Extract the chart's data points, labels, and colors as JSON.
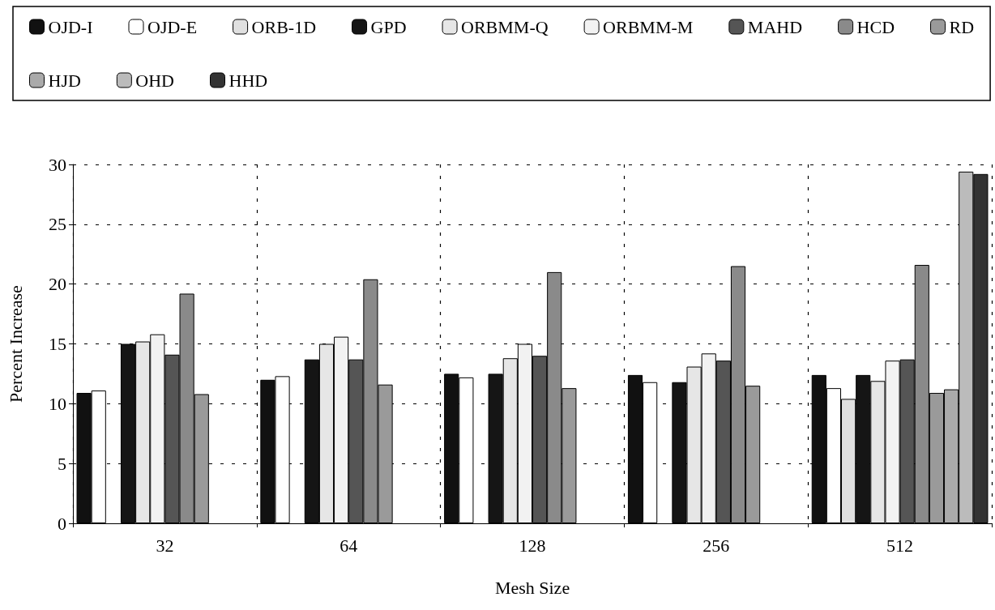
{
  "chart_data": {
    "type": "bar",
    "xlabel": "Mesh Size",
    "ylabel": "Percent Increase",
    "categories": [
      "32",
      "64",
      "128",
      "256",
      "512"
    ],
    "ylim": [
      0,
      30
    ],
    "yticks": [
      0,
      5,
      10,
      15,
      20,
      25,
      30
    ],
    "grid": true,
    "legend": "top",
    "series": [
      {
        "name": "OJD-I",
        "color": "#111111",
        "values": [
          10.9,
          12.0,
          12.5,
          12.4,
          12.4
        ]
      },
      {
        "name": "OJD-E",
        "color": "#ffffff",
        "values": [
          11.1,
          12.3,
          12.2,
          11.8,
          11.3
        ]
      },
      {
        "name": "ORB-1D",
        "color": "#e0e0e0",
        "values": [
          null,
          null,
          null,
          null,
          10.4
        ]
      },
      {
        "name": "GPD",
        "color": "#151515",
        "values": [
          15.0,
          13.7,
          12.5,
          11.8,
          12.4
        ]
      },
      {
        "name": "ORBMM-Q",
        "color": "#e6e6e6",
        "values": [
          15.2,
          15.0,
          13.8,
          13.1,
          11.9
        ]
      },
      {
        "name": "ORBMM-M",
        "color": "#f2f2f2",
        "values": [
          15.8,
          15.6,
          15.0,
          14.2,
          13.6
        ]
      },
      {
        "name": "MAHD",
        "color": "#555555",
        "values": [
          14.1,
          13.7,
          14.0,
          13.6,
          13.7
        ]
      },
      {
        "name": "HCD",
        "color": "#8a8a8a",
        "values": [
          19.2,
          20.4,
          21.0,
          21.5,
          21.6
        ]
      },
      {
        "name": "RD",
        "color": "#9a9a9a",
        "values": [
          10.8,
          11.6,
          11.3,
          11.5,
          10.9
        ]
      },
      {
        "name": "HJD",
        "color": "#aaaaaa",
        "values": [
          null,
          null,
          null,
          null,
          11.2
        ]
      },
      {
        "name": "OHD",
        "color": "#bbbbbb",
        "values": [
          null,
          null,
          null,
          null,
          29.4
        ]
      },
      {
        "name": "HHD",
        "color": "#333333",
        "values": [
          null,
          null,
          null,
          null,
          29.2
        ]
      }
    ]
  }
}
